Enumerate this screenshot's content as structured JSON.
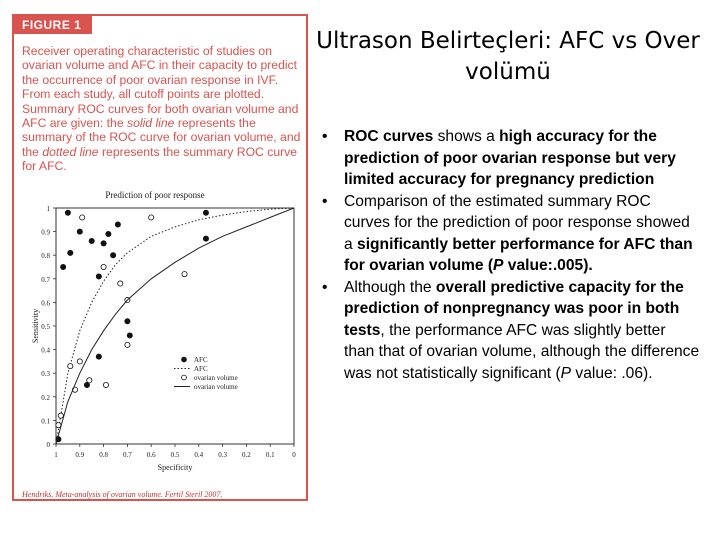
{
  "slide": {
    "title": "Ultrason Belirteçleri: AFC vs Over volümü",
    "bullets": [
      {
        "parts": [
          {
            "text": "ROC curves",
            "bold": true
          },
          {
            "text": " shows a ",
            "bold": false
          },
          {
            "text": "high accuracy for the prediction of poor ovarian response",
            "bold": true
          },
          {
            "text": " but very limited accuracy for pregnancy prediction",
            "bold": true
          }
        ]
      },
      {
        "parts": [
          {
            "text": "Comparison of the estimated summary ROC curves for  the prediction of poor response showed a ",
            "bold": false
          },
          {
            "text": "significantly better performance for AFC than for ovarian volume (",
            "bold": true
          },
          {
            "text": "P",
            "bold": true,
            "italic": true
          },
          {
            "text": " value:.005).",
            "bold": true
          }
        ]
      },
      {
        "parts": [
          {
            "text": "Although the ",
            "bold": false
          },
          {
            "text": "overall predictive capacity for the prediction of nonpregnancy was poor in both tests",
            "bold": true
          },
          {
            "text": ", the performance AFC was slightly better than that of ovarian volume, although the difference was not statistically significant (",
            "bold": false
          },
          {
            "text": "P",
            "bold": false,
            "italic": true
          },
          {
            "text": " value: .06).",
            "bold": false
          }
        ]
      }
    ]
  },
  "figure": {
    "label": "FIGURE 1",
    "caption_parts": [
      {
        "text": "Receiver operating characteristic of studies on ovarian volume and AFC in their capacity to predict the occurrence of poor ovarian response in IVF. From each study, all cutoff points are plotted. Summary ROC curves for both ovarian volume and AFC are given: the ",
        "italic": false
      },
      {
        "text": "solid line",
        "italic": true
      },
      {
        "text": " represents the summary of the ROC curve for ovarian volume, and the ",
        "italic": false
      },
      {
        "text": "dotted line",
        "italic": true
      },
      {
        "text": " represents the summary ROC curve for AFC.",
        "italic": false
      }
    ],
    "citation": "Hendriks. Meta-analysis of ovarian volume. Fertil Steril 2007."
  },
  "colors": {
    "accent": "#d9534f"
  },
  "chart_data": {
    "type": "scatter",
    "title": "Prediction of poor response",
    "xlabel": "Specificity",
    "ylabel": "Sensitivity",
    "xlim": [
      1,
      0
    ],
    "ylim": [
      0,
      1
    ],
    "x_ticks": [
      "1",
      "0.9",
      "0.8",
      "0.7",
      "0.6",
      "0.5",
      "0.4",
      "0.3",
      "0.2",
      "0.1",
      "0"
    ],
    "y_ticks": [
      "0",
      "0.1",
      "0.2",
      "0.3",
      "0.4",
      "0.5",
      "0.6",
      "0.7",
      "0.8",
      "0.9",
      "1"
    ],
    "x_tick_values": [
      1,
      0.9,
      0.8,
      0.7,
      0.6,
      0.5,
      0.4,
      0.3,
      0.2,
      0.1,
      0
    ],
    "y_tick_values": [
      0,
      0.1,
      0.2,
      0.3,
      0.4,
      0.5,
      0.6,
      0.7,
      0.8,
      0.9,
      1
    ],
    "grid": false,
    "legend_position": "bottom-right",
    "series": [
      {
        "name": "AFC",
        "kind": "points",
        "marker": "filled",
        "points": [
          [
            0.99,
            0.02
          ],
          [
            0.97,
            0.75
          ],
          [
            0.95,
            0.98
          ],
          [
            0.94,
            0.81
          ],
          [
            0.9,
            0.9
          ],
          [
            0.87,
            0.25
          ],
          [
            0.85,
            0.86
          ],
          [
            0.82,
            0.37
          ],
          [
            0.82,
            0.71
          ],
          [
            0.8,
            0.85
          ],
          [
            0.78,
            0.89
          ],
          [
            0.76,
            0.8
          ],
          [
            0.74,
            0.93
          ],
          [
            0.7,
            0.52
          ],
          [
            0.69,
            0.46
          ],
          [
            0.37,
            0.98
          ],
          [
            0.37,
            0.87
          ]
        ]
      },
      {
        "name": "AFC",
        "kind": "curve",
        "style": "dotted",
        "points": [
          [
            1,
            0
          ],
          [
            0.95,
            0.3
          ],
          [
            0.9,
            0.48
          ],
          [
            0.85,
            0.6
          ],
          [
            0.8,
            0.69
          ],
          [
            0.75,
            0.76
          ],
          [
            0.7,
            0.81
          ],
          [
            0.6,
            0.88
          ],
          [
            0.5,
            0.92
          ],
          [
            0.4,
            0.95
          ],
          [
            0.3,
            0.97
          ],
          [
            0.2,
            0.985
          ],
          [
            0.1,
            0.995
          ],
          [
            0,
            1
          ]
        ]
      },
      {
        "name": "ovarian volume",
        "kind": "points",
        "marker": "open",
        "points": [
          [
            0.99,
            0.08
          ],
          [
            0.98,
            0.12
          ],
          [
            0.94,
            0.33
          ],
          [
            0.92,
            0.23
          ],
          [
            0.9,
            0.35
          ],
          [
            0.89,
            0.96
          ],
          [
            0.86,
            0.27
          ],
          [
            0.8,
            0.75
          ],
          [
            0.79,
            0.25
          ],
          [
            0.73,
            0.68
          ],
          [
            0.7,
            0.61
          ],
          [
            0.7,
            0.42
          ],
          [
            0.6,
            0.96
          ],
          [
            0.46,
            0.72
          ]
        ]
      },
      {
        "name": "ovarian volume",
        "kind": "curve",
        "style": "solid",
        "points": [
          [
            1,
            0
          ],
          [
            0.95,
            0.18
          ],
          [
            0.9,
            0.3
          ],
          [
            0.85,
            0.4
          ],
          [
            0.8,
            0.48
          ],
          [
            0.75,
            0.55
          ],
          [
            0.7,
            0.61
          ],
          [
            0.6,
            0.7
          ],
          [
            0.5,
            0.77
          ],
          [
            0.4,
            0.83
          ],
          [
            0.3,
            0.88
          ],
          [
            0.2,
            0.92
          ],
          [
            0.1,
            0.96
          ],
          [
            0,
            1
          ]
        ]
      }
    ],
    "legend": [
      {
        "label": "AFC",
        "symbol": "filled"
      },
      {
        "label": "AFC",
        "symbol": "dotted"
      },
      {
        "label": "ovarian volume",
        "symbol": "open"
      },
      {
        "label": "ovarian volume",
        "symbol": "solid"
      }
    ]
  }
}
